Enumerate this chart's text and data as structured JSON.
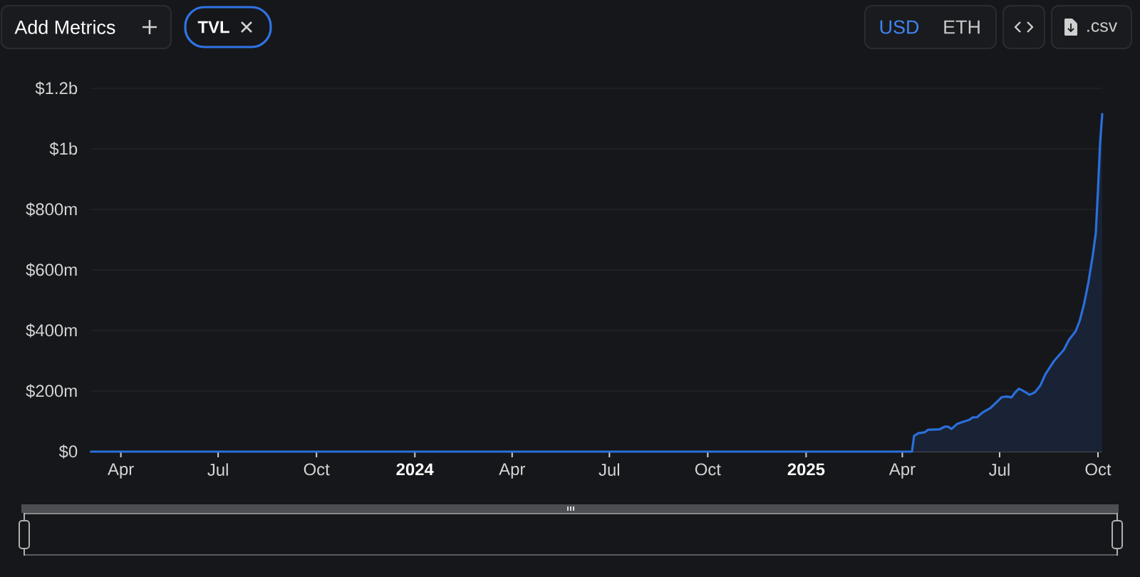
{
  "chart_data": {
    "type": "area",
    "color": "#2a6fdb",
    "x": [
      "2023-03-04",
      "2025-04-10",
      "2025-04-12",
      "2025-04-16",
      "2025-04-22",
      "2025-04-25",
      "2025-05-06",
      "2025-05-11",
      "2025-05-14",
      "2025-05-17",
      "2025-05-22",
      "2025-05-28",
      "2025-06-02",
      "2025-06-06",
      "2025-06-10",
      "2025-06-15",
      "2025-06-22",
      "2025-06-29",
      "2025-07-03",
      "2025-07-08",
      "2025-07-12",
      "2025-07-15",
      "2025-07-19",
      "2025-07-23",
      "2025-07-29",
      "2025-08-03",
      "2025-08-08",
      "2025-08-13",
      "2025-08-21",
      "2025-08-30",
      "2025-09-04",
      "2025-09-10",
      "2025-09-14",
      "2025-09-18",
      "2025-09-22",
      "2025-09-26",
      "2025-09-29",
      "2025-10-01",
      "2025-10-03",
      "2025-10-05"
    ],
    "values": [
      0,
      0,
      52000000,
      61000000,
      64000000,
      72000000,
      74000000,
      83000000,
      82000000,
      75000000,
      91000000,
      99000000,
      104000000,
      113000000,
      114000000,
      129000000,
      143000000,
      166000000,
      180000000,
      182000000,
      179000000,
      193000000,
      208000000,
      201000000,
      188000000,
      196000000,
      218000000,
      257000000,
      300000000,
      336000000,
      370000000,
      397000000,
      433000000,
      488000000,
      558000000,
      645000000,
      723000000,
      864000000,
      1021000000,
      1115000000
    ],
    "xlim": [
      "2023-03-04",
      "2025-10-05"
    ],
    "xticks": [
      {
        "value": "2023-04-01",
        "label": "Apr"
      },
      {
        "value": "2023-07-01",
        "label": "Jul"
      },
      {
        "value": "2023-10-01",
        "label": "Oct"
      },
      {
        "value": "2024-01-01",
        "label": "2024"
      },
      {
        "value": "2024-04-01",
        "label": "Apr"
      },
      {
        "value": "2024-07-01",
        "label": "Jul"
      },
      {
        "value": "2024-10-01",
        "label": "Oct"
      },
      {
        "value": "2025-01-01",
        "label": "2025"
      },
      {
        "value": "2025-04-01",
        "label": "Apr"
      },
      {
        "value": "2025-07-01",
        "label": "Jul"
      },
      {
        "value": "2025-10-01",
        "label": "Oct"
      }
    ],
    "ylim": [
      0,
      1200000000
    ],
    "yticks": [
      {
        "value": 0,
        "label": "$0"
      },
      {
        "value": 200000000,
        "label": "$200m"
      },
      {
        "value": 400000000,
        "label": "$400m"
      },
      {
        "value": 600000000,
        "label": "$600m"
      },
      {
        "value": 800000000,
        "label": "$800m"
      },
      {
        "value": 1000000000,
        "label": "$1b"
      },
      {
        "value": 1200000000,
        "label": "$1.2b"
      }
    ],
    "grid": "y",
    "annotations": [
      "Add Metrics",
      "TVL",
      "USD",
      "ETH",
      ".csv"
    ]
  }
}
